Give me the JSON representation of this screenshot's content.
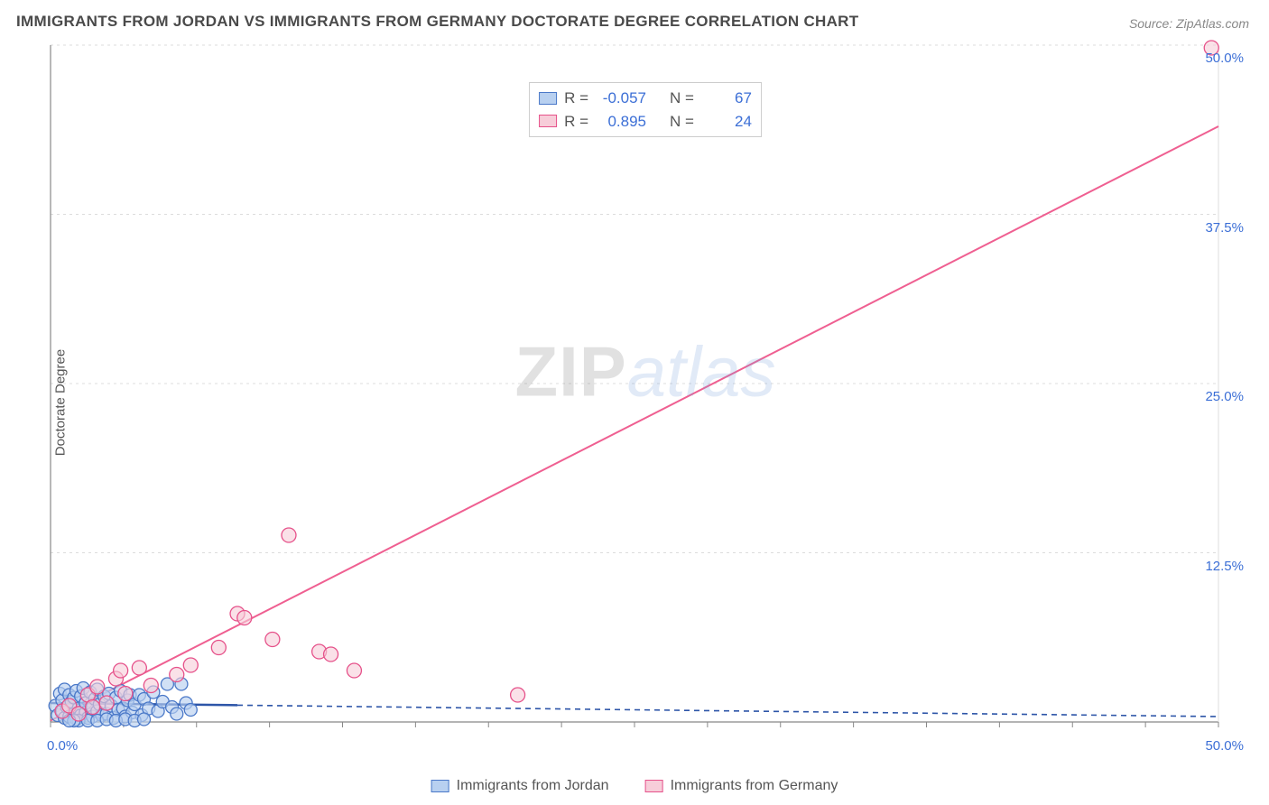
{
  "title": "IMMIGRANTS FROM JORDAN VS IMMIGRANTS FROM GERMANY DOCTORATE DEGREE CORRELATION CHART",
  "source": "Source: ZipAtlas.com",
  "y_axis_label": "Doctorate Degree",
  "watermark": {
    "part1": "ZIP",
    "part2": "atlas"
  },
  "chart": {
    "type": "scatter-correlation",
    "background_color": "#ffffff",
    "grid_color": "#dcdcdc",
    "axis_color": "#888888",
    "tick_label_color": "#3c6fd6",
    "xlim": [
      0,
      50
    ],
    "ylim": [
      0,
      50
    ],
    "x_tick_origin_label": "0.0%",
    "x_tick_end_label": "50.0%",
    "y_ticks": [
      {
        "v": 12.5,
        "label": "12.5%"
      },
      {
        "v": 25.0,
        "label": "25.0%"
      },
      {
        "v": 37.5,
        "label": "37.5%"
      },
      {
        "v": 50.0,
        "label": "50.0%"
      }
    ],
    "x_minor_step": 3.125,
    "series": [
      {
        "id": "jordan",
        "label": "Immigrants from Jordan",
        "marker_fill": "#b8d0f0",
        "marker_stroke": "#4a78c8",
        "marker_radius": 7,
        "marker_opacity": 0.65,
        "trend_color": "#2d55a8",
        "trend_solid_until_x": 8,
        "trend_dash": "6,5",
        "trend_y0": 1.4,
        "trend_y50": 0.4,
        "R": "-0.057",
        "N": "67",
        "points": [
          [
            0.2,
            1.2
          ],
          [
            0.3,
            0.5
          ],
          [
            0.4,
            2.1
          ],
          [
            0.5,
            0.8
          ],
          [
            0.5,
            1.6
          ],
          [
            0.6,
            0.3
          ],
          [
            0.6,
            2.4
          ],
          [
            0.7,
            1.1
          ],
          [
            0.8,
            0.4
          ],
          [
            0.8,
            2.0
          ],
          [
            0.9,
            1.5
          ],
          [
            1.0,
            0.6
          ],
          [
            1.0,
            1.8
          ],
          [
            1.1,
            0.2
          ],
          [
            1.1,
            2.3
          ],
          [
            1.2,
            1.0
          ],
          [
            1.3,
            0.5
          ],
          [
            1.3,
            1.9
          ],
          [
            1.4,
            2.5
          ],
          [
            1.5,
            0.7
          ],
          [
            1.5,
            1.4
          ],
          [
            1.6,
            0.3
          ],
          [
            1.7,
            2.2
          ],
          [
            1.8,
            1.1
          ],
          [
            1.8,
            0.4
          ],
          [
            1.9,
            1.7
          ],
          [
            2.0,
            0.8
          ],
          [
            2.0,
            2.4
          ],
          [
            2.1,
            1.3
          ],
          [
            2.2,
            0.5
          ],
          [
            2.3,
            1.9
          ],
          [
            2.4,
            0.6
          ],
          [
            2.5,
            2.1
          ],
          [
            2.6,
            1.2
          ],
          [
            2.7,
            0.3
          ],
          [
            2.8,
            1.8
          ],
          [
            2.9,
            0.9
          ],
          [
            3.0,
            2.3
          ],
          [
            3.1,
            1.0
          ],
          [
            3.2,
            0.4
          ],
          [
            3.3,
            1.6
          ],
          [
            3.4,
            2.0
          ],
          [
            3.5,
            0.7
          ],
          [
            3.6,
            1.3
          ],
          [
            3.8,
            2.0
          ],
          [
            3.9,
            0.5
          ],
          [
            4.0,
            1.7
          ],
          [
            4.2,
            1.0
          ],
          [
            4.4,
            2.2
          ],
          [
            4.6,
            0.8
          ],
          [
            4.8,
            1.5
          ],
          [
            5.0,
            2.8
          ],
          [
            5.2,
            1.1
          ],
          [
            5.4,
            0.6
          ],
          [
            5.6,
            2.8
          ],
          [
            5.8,
            1.4
          ],
          [
            6.0,
            0.9
          ],
          [
            1.2,
            0.1
          ],
          [
            1.6,
            0.1
          ],
          [
            2.0,
            0.1
          ],
          [
            2.4,
            0.2
          ],
          [
            2.8,
            0.1
          ],
          [
            3.2,
            0.2
          ],
          [
            3.6,
            0.1
          ],
          [
            4.0,
            0.2
          ],
          [
            1.0,
            0.1
          ],
          [
            0.8,
            0.1
          ]
        ]
      },
      {
        "id": "germany",
        "label": "Immigrants from Germany",
        "marker_fill": "#f7cdd9",
        "marker_stroke": "#e6518a",
        "marker_radius": 8,
        "marker_opacity": 0.6,
        "trend_color": "#ef5f91",
        "trend_dash": "none",
        "trend_y0": 0.1,
        "trend_y50": 44.0,
        "R": "0.895",
        "N": "24",
        "points": [
          [
            0.5,
            0.8
          ],
          [
            0.8,
            1.2
          ],
          [
            1.2,
            0.6
          ],
          [
            1.6,
            2.0
          ],
          [
            1.8,
            1.1
          ],
          [
            2.0,
            2.6
          ],
          [
            2.4,
            1.4
          ],
          [
            2.8,
            3.2
          ],
          [
            3.2,
            2.1
          ],
          [
            3.8,
            4.0
          ],
          [
            4.3,
            2.7
          ],
          [
            5.4,
            3.5
          ],
          [
            6.0,
            4.2
          ],
          [
            7.2,
            5.5
          ],
          [
            8.0,
            8.0
          ],
          [
            8.3,
            7.7
          ],
          [
            9.5,
            6.1
          ],
          [
            10.2,
            13.8
          ],
          [
            11.5,
            5.2
          ],
          [
            12.0,
            5.0
          ],
          [
            13.0,
            3.8
          ],
          [
            20.0,
            2.0
          ],
          [
            3.0,
            3.8
          ],
          [
            49.7,
            49.8
          ]
        ]
      }
    ]
  },
  "stats_box": {
    "border_color": "#cccccc",
    "rows": [
      {
        "swatch_fill": "#b8d0f0",
        "swatch_stroke": "#4a78c8",
        "R": "-0.057",
        "N": "67"
      },
      {
        "swatch_fill": "#f7cdd9",
        "swatch_stroke": "#e6518a",
        "R": "0.895",
        "N": "24"
      }
    ],
    "labels": {
      "R": "R =",
      "N": "N ="
    }
  },
  "legend": {
    "items": [
      {
        "swatch_fill": "#b8d0f0",
        "swatch_stroke": "#4a78c8",
        "label": "Immigrants from Jordan"
      },
      {
        "swatch_fill": "#f7cdd9",
        "swatch_stroke": "#e6518a",
        "label": "Immigrants from Germany"
      }
    ]
  }
}
